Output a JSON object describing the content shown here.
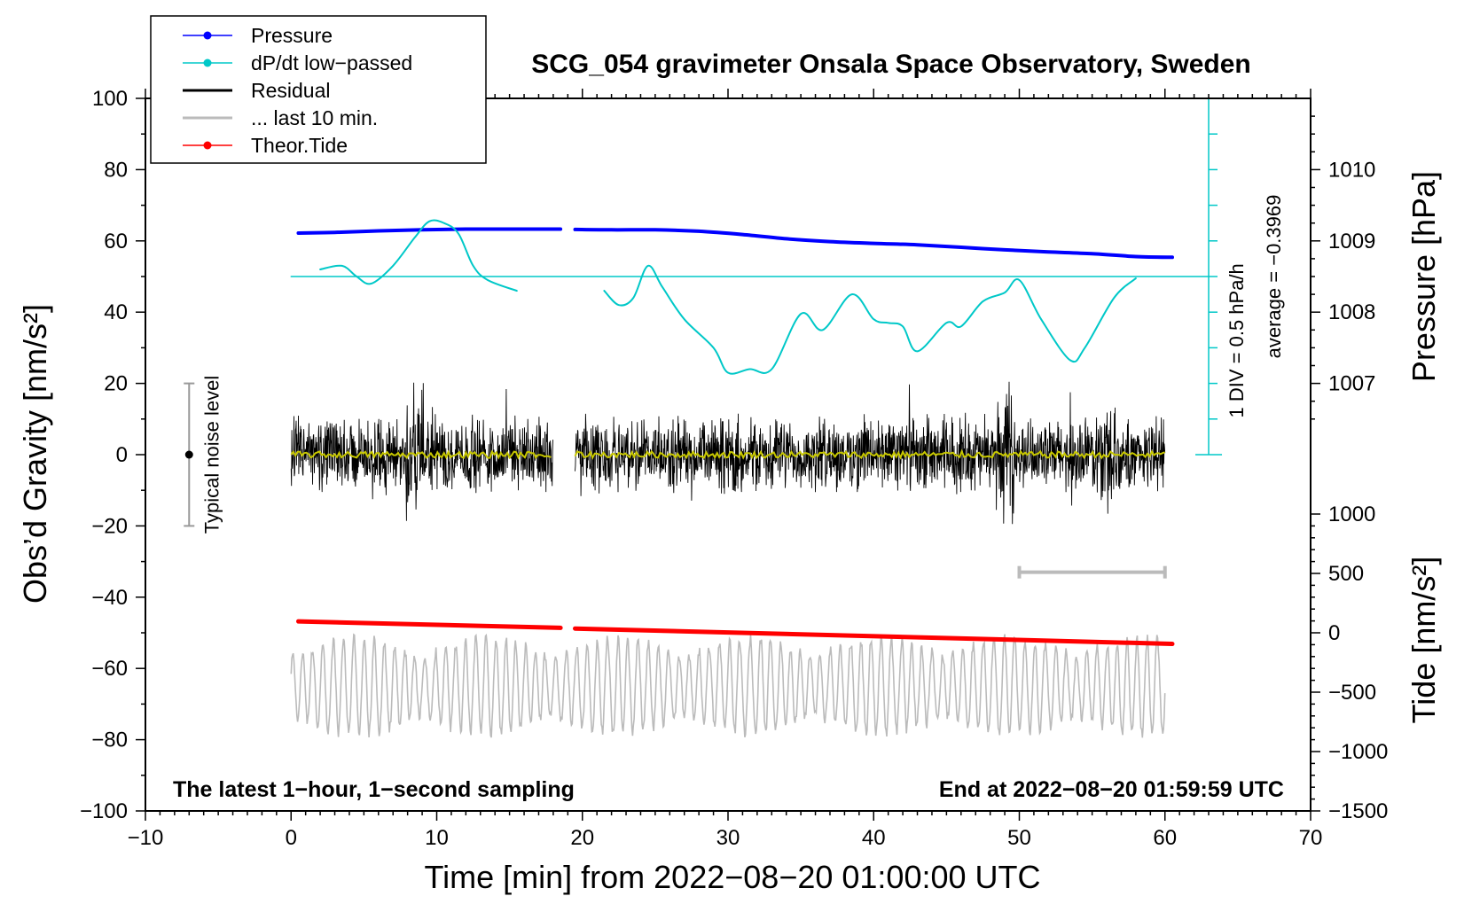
{
  "chart_data": {
    "type": "line",
    "title": "SCG_054 gravimeter Onsala Space Observatory, Sweden",
    "xlabel": "Time [min] from 2022−08−20 01:00:00 UTC",
    "ylabel_left": "Obs’d Gravity [nm/s²]",
    "ylabel_right_top": "Pressure [hPa]",
    "ylabel_right_bottom": "Tide [nm/s²]",
    "xlim": [
      -10,
      70
    ],
    "ylim": [
      -100,
      100
    ],
    "x_ticks": [
      {
        "v": -10,
        "t": "−10"
      },
      {
        "v": 0,
        "t": "0"
      },
      {
        "v": 10,
        "t": "10"
      },
      {
        "v": 20,
        "t": "20"
      },
      {
        "v": 30,
        "t": "30"
      },
      {
        "v": 40,
        "t": "40"
      },
      {
        "v": 50,
        "t": "50"
      },
      {
        "v": 60,
        "t": "60"
      },
      {
        "v": 70,
        "t": "70"
      }
    ],
    "y_ticks": [
      {
        "v": 100,
        "t": "100"
      },
      {
        "v": 80,
        "t": "80"
      },
      {
        "v": 60,
        "t": "60"
      },
      {
        "v": 40,
        "t": "40"
      },
      {
        "v": 20,
        "t": "20"
      },
      {
        "v": 0,
        "t": "0"
      },
      {
        "v": -20,
        "t": "−20"
      },
      {
        "v": -40,
        "t": "−40"
      },
      {
        "v": -60,
        "t": "−60"
      },
      {
        "v": -80,
        "t": "−80"
      },
      {
        "v": -100,
        "t": "−100"
      }
    ],
    "pressure_axis": {
      "ticks": [
        {
          "hpa": 1010,
          "gy": 80,
          "t": "1010"
        },
        {
          "hpa": 1009,
          "gy": 60,
          "t": "1009"
        },
        {
          "hpa": 1008,
          "gy": 40,
          "t": "1008"
        },
        {
          "hpa": 1007,
          "gy": 20,
          "t": "1007"
        }
      ]
    },
    "tide_axis": {
      "ticks": [
        {
          "v": 1000,
          "gy": -16.67,
          "t": "1000"
        },
        {
          "v": 500,
          "gy": -33.33,
          "t": "500"
        },
        {
          "v": 0,
          "gy": -50,
          "t": "0"
        },
        {
          "v": -500,
          "gy": -66.67,
          "t": "−500"
        },
        {
          "v": -1000,
          "gy": -83.33,
          "t": "−1000"
        },
        {
          "v": -1500,
          "gy": -100,
          "t": "−1500"
        }
      ]
    },
    "legend": {
      "placement": "top-left",
      "entries": [
        {
          "label": "Pressure",
          "color": "#0000ff",
          "marker": true
        },
        {
          "label": "dP/dt low−passed",
          "color": "#00c8c8",
          "marker": true
        },
        {
          "label": "Residual",
          "color": "#000000",
          "marker": false
        },
        {
          "label": "... last 10 min.",
          "color": "#bbbbbb",
          "marker": false
        },
        {
          "label": "Theor.Tide",
          "color": "#ff0000",
          "marker": true
        }
      ]
    },
    "series": [
      {
        "name": "Pressure",
        "color": "#0000ff",
        "axis": "left-mapped",
        "segments": [
          {
            "x": [
              0.5,
              3,
              6,
              9,
              12,
              15,
              18.5
            ],
            "y": [
              62.2,
              62.4,
              62.8,
              63.1,
              63.3,
              63.3,
              63.3
            ]
          },
          {
            "x": [
              19.5,
              22,
              25,
              28,
              31,
              34,
              37,
              40,
              43,
              46,
              49,
              52,
              55,
              58,
              60.5
            ],
            "y": [
              63.2,
              63.1,
              63.1,
              62.7,
              61.8,
              60.6,
              59.8,
              59.3,
              58.9,
              58.2,
              57.5,
              56.9,
              56.4,
              55.6,
              55.4
            ]
          }
        ]
      },
      {
        "name": "dP/dt low−passed",
        "color": "#00c8c8",
        "axis": "left-mapped",
        "segments": [
          {
            "x": [
              2,
              3.5,
              4.5,
              5.5,
              7,
              8.5,
              9.5,
              10.5,
              11.5,
              12.5,
              13.5,
              15.5
            ],
            "y": [
              52,
              53,
              50,
              48,
              53,
              61,
              65.5,
              65,
              62,
              53,
              49,
              46
            ]
          },
          {
            "x": [
              21.5,
              22.5,
              23.5,
              24.5,
              25.5,
              27,
              29,
              30,
              31.5,
              33,
              35,
              36.5,
              38.5,
              40,
              41,
              42,
              43,
              45,
              46,
              47.5,
              49,
              50,
              51.5,
              53.5,
              54.5,
              56.5,
              58
            ],
            "y": [
              46,
              42,
              44,
              53,
              47,
              38,
              30,
              23,
              24,
              24,
              39.5,
              35,
              45,
              38,
              37,
              36,
              29,
              37,
              36,
              43,
              45.5,
              49,
              38,
              26.5,
              30,
              44,
              49.5
            ]
          }
        ]
      },
      {
        "name": "dP/dt reference line",
        "color": "#00c8c8",
        "segments": [
          {
            "x": [
              0,
              63
            ],
            "y": [
              50,
              50
            ]
          }
        ]
      },
      {
        "name": "Theor.Tide",
        "color": "#ff0000",
        "axis": "left-mapped",
        "segments": [
          {
            "x": [
              0.5,
              18.5
            ],
            "y": [
              -46.8,
              -48.6
            ]
          },
          {
            "x": [
              19.5,
              60.5
            ],
            "y": [
              -48.8,
              -53.1
            ]
          }
        ]
      }
    ],
    "residual": {
      "color": "#000000",
      "segments": [
        [
          0,
          18
        ],
        [
          19.5,
          60
        ]
      ],
      "typical_amplitude": 12,
      "max_peak": 27,
      "bursts_at": [
        8.5,
        49,
        56
      ]
    },
    "residual_smoothed": {
      "color": "#c8c800",
      "level": 0
    },
    "last_10_min": {
      "color": "#bbbbbb",
      "x_range": [
        0,
        60
      ],
      "center": -65,
      "amplitude": 12,
      "bar": {
        "x": [
          50,
          60
        ],
        "y": -33
      }
    },
    "noise_level": {
      "x": -7,
      "range": [
        -20,
        20
      ],
      "center": 0,
      "label": "Typical noise level"
    },
    "dpdt_scale": {
      "x": 63,
      "y_range": [
        0,
        100
      ],
      "label1": "1 DIV = 0.5 hPa/h",
      "label2": "average = −0.3969"
    },
    "annotations": {
      "bottom_left": "The latest 1−hour, 1−second sampling",
      "bottom_right": "End at 2022−08−20 01:59:59 UTC"
    }
  }
}
